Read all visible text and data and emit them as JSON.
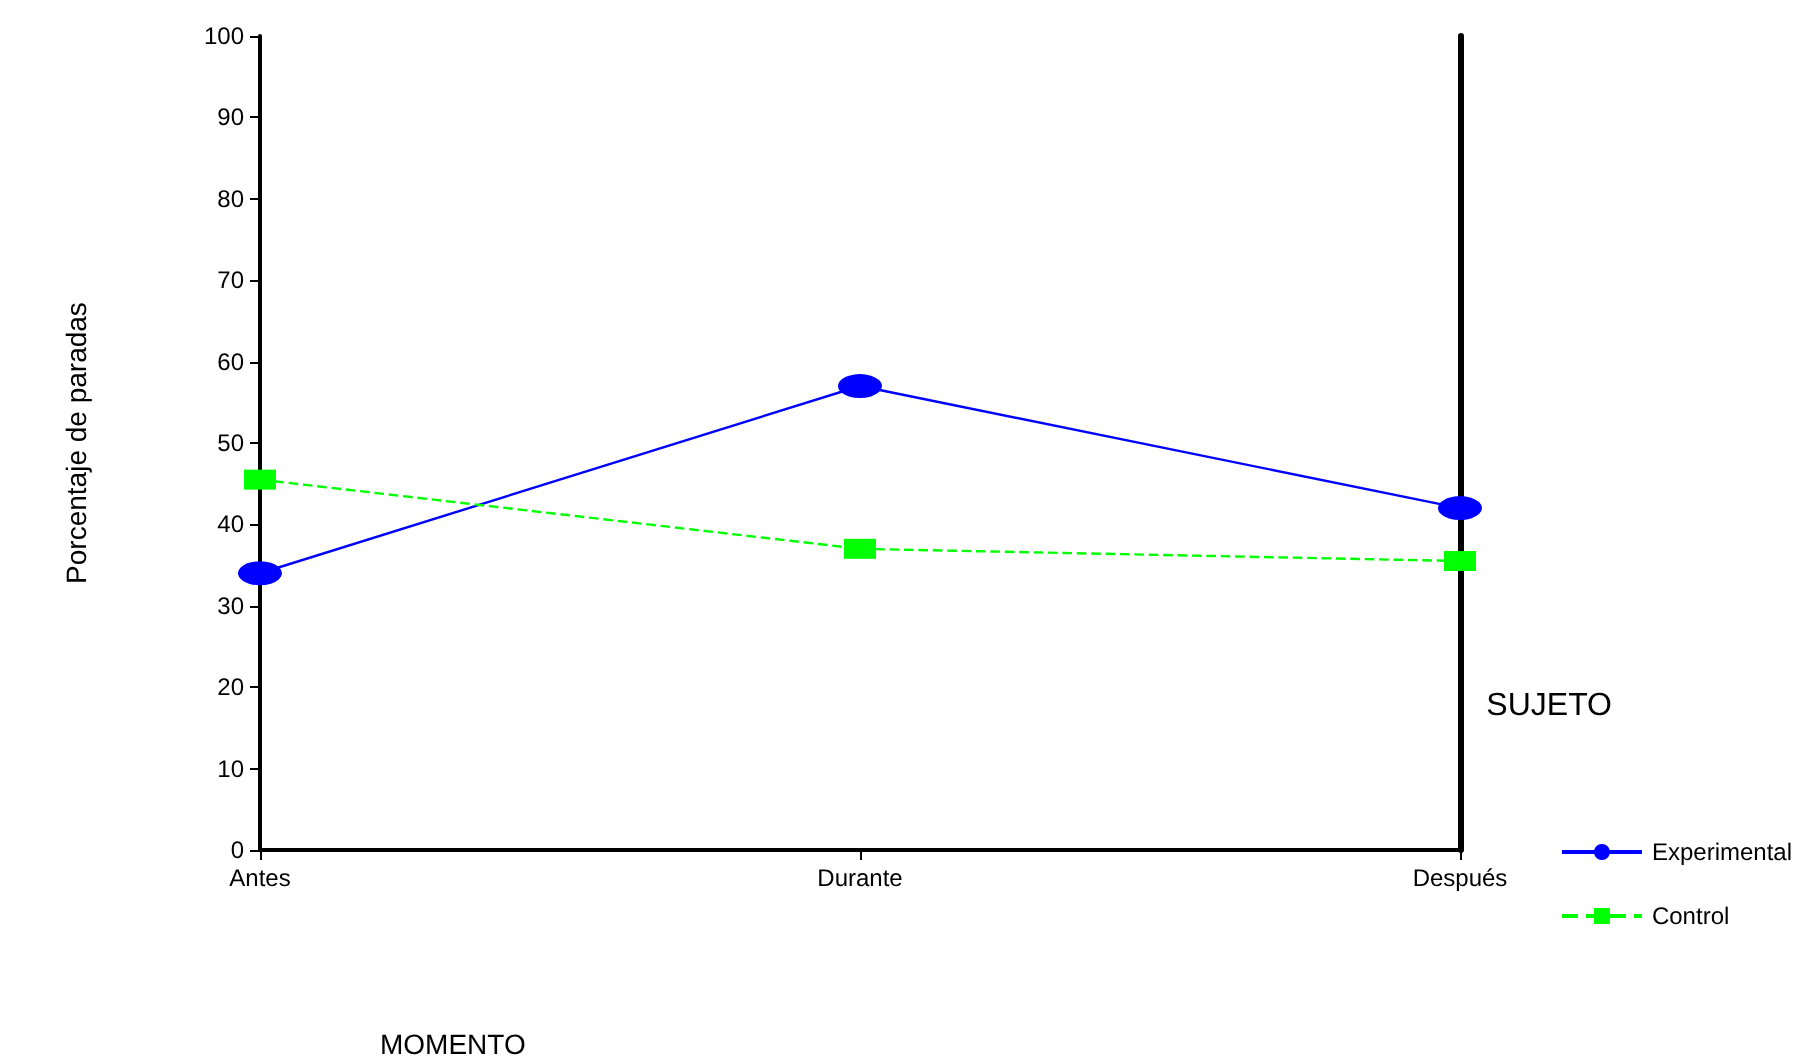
{
  "chart_data": {
    "type": "line",
    "xlabel": "MOMENTO",
    "ylabel": "Porcentaje de paradas",
    "legend_title": "SUJETO",
    "categories": [
      "Antes",
      "Durante",
      "Después"
    ],
    "series": [
      {
        "name": "Experimental",
        "color": "#0000ff",
        "values": [
          34,
          57,
          42
        ],
        "marker": "circle",
        "line_style": "solid"
      },
      {
        "name": "Control",
        "color": "#00ff00",
        "values": [
          45.5,
          37,
          35.5
        ],
        "marker": "square",
        "line_style": "dashed"
      }
    ],
    "ylim": [
      0,
      100
    ],
    "yticks": [
      0,
      10,
      20,
      30,
      40,
      50,
      60,
      70,
      80,
      90,
      100
    ],
    "grid": false,
    "legend": "bottom right"
  }
}
